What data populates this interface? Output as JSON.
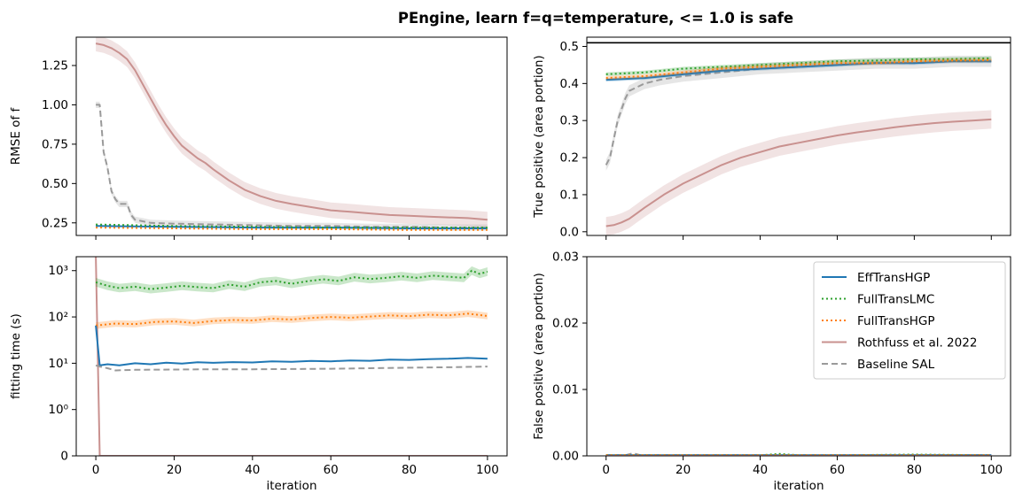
{
  "title": "PEngine, learn f=q=temperature, <= 1.0 is safe",
  "colors": {
    "EffTransHGP": "#1f77b4",
    "FullTransLMC": "#2ca02c",
    "FullTransHGP": "#ff7f0e",
    "Rothfuss": "#c9918f",
    "Baseline": "#9a9a9a"
  },
  "legend": {
    "placement": "upper-right (bottom-right panel)",
    "entries": [
      {
        "label": "EffTransHGP",
        "style": "solid",
        "color_key": "EffTransHGP"
      },
      {
        "label": "FullTransLMC",
        "style": "dotted",
        "color_key": "FullTransLMC"
      },
      {
        "label": "FullTransHGP",
        "style": "dotted",
        "color_key": "FullTransHGP"
      },
      {
        "label": "Rothfuss et al. 2022",
        "style": "solid",
        "color_key": "Rothfuss"
      },
      {
        "label": "Baseline SAL",
        "style": "dashed",
        "color_key": "Baseline"
      }
    ]
  },
  "chart_data": [
    {
      "panel": "top-left",
      "type": "line",
      "xlabel": "",
      "ylabel": "RMSE of f",
      "xlim": [
        -5,
        105
      ],
      "ylim": [
        0.17,
        1.43
      ],
      "yscale": "linear",
      "yticks": [
        "0.25",
        "0.50",
        "0.75",
        "1.00",
        "1.25"
      ],
      "ytick_values": [
        0.25,
        0.5,
        0.75,
        1.0,
        1.25
      ],
      "xtick_values": [
        0,
        20,
        40,
        60,
        80,
        100
      ],
      "show_xticklabels": false,
      "grid": false,
      "series": [
        {
          "name": "Rothfuss et al. 2022",
          "color_key": "Rothfuss",
          "style": "solid",
          "band": 0.05,
          "x": [
            0,
            2,
            4,
            6,
            8,
            10,
            12,
            14,
            16,
            18,
            20,
            22,
            24,
            26,
            28,
            30,
            34,
            38,
            42,
            46,
            50,
            55,
            60,
            65,
            70,
            75,
            80,
            85,
            90,
            95,
            100
          ],
          "y": [
            1.39,
            1.38,
            1.36,
            1.33,
            1.29,
            1.22,
            1.13,
            1.04,
            0.95,
            0.87,
            0.8,
            0.74,
            0.7,
            0.66,
            0.63,
            0.59,
            0.52,
            0.46,
            0.42,
            0.39,
            0.37,
            0.35,
            0.33,
            0.32,
            0.31,
            0.3,
            0.295,
            0.29,
            0.285,
            0.28,
            0.27
          ]
        },
        {
          "name": "Baseline SAL",
          "color_key": "Baseline",
          "style": "dashed",
          "band": 0.02,
          "x": [
            0,
            1,
            2,
            3,
            4,
            5,
            6,
            7,
            8,
            9,
            10,
            12,
            14,
            20,
            30,
            40,
            50,
            60,
            70,
            80,
            90,
            100
          ],
          "y": [
            1.0,
            1.0,
            0.7,
            0.6,
            0.45,
            0.4,
            0.37,
            0.37,
            0.37,
            0.3,
            0.27,
            0.26,
            0.25,
            0.245,
            0.24,
            0.235,
            0.23,
            0.23,
            0.225,
            0.225,
            0.22,
            0.22
          ]
        },
        {
          "name": "EffTransHGP",
          "color_key": "EffTransHGP",
          "style": "solid",
          "band": 0.0,
          "x": [
            0,
            20,
            40,
            60,
            80,
            100
          ],
          "y": [
            0.23,
            0.225,
            0.22,
            0.22,
            0.215,
            0.215
          ]
        },
        {
          "name": "FullTransLMC",
          "color_key": "FullTransLMC",
          "style": "dotted",
          "band": 0.0,
          "x": [
            0,
            20,
            40,
            60,
            80,
            100
          ],
          "y": [
            0.24,
            0.23,
            0.225,
            0.22,
            0.22,
            0.22
          ]
        },
        {
          "name": "FullTransHGP",
          "color_key": "FullTransHGP",
          "style": "dotted",
          "band": 0.0,
          "x": [
            0,
            20,
            40,
            60,
            80,
            100
          ],
          "y": [
            0.22,
            0.215,
            0.21,
            0.21,
            0.205,
            0.205
          ]
        }
      ]
    },
    {
      "panel": "top-right",
      "type": "line",
      "xlabel": "",
      "ylabel": "True positive (area portion)",
      "xlim": [
        -5,
        105
      ],
      "ylim": [
        -0.01,
        0.525
      ],
      "yscale": "linear",
      "yticks": [
        "0.0",
        "0.1",
        "0.2",
        "0.3",
        "0.4",
        "0.5"
      ],
      "ytick_values": [
        0.0,
        0.1,
        0.2,
        0.3,
        0.4,
        0.5
      ],
      "xtick_values": [
        0,
        20,
        40,
        60,
        80,
        100
      ],
      "show_xticklabels": false,
      "grid": false,
      "hline": 0.51,
      "series": [
        {
          "name": "Rothfuss et al. 2022",
          "color_key": "Rothfuss",
          "style": "solid",
          "band": 0.025,
          "x": [
            0,
            2,
            4,
            6,
            8,
            10,
            15,
            20,
            25,
            30,
            35,
            40,
            45,
            50,
            55,
            60,
            65,
            70,
            75,
            80,
            85,
            90,
            95,
            100
          ],
          "y": [
            0.015,
            0.018,
            0.025,
            0.035,
            0.05,
            0.065,
            0.1,
            0.13,
            0.155,
            0.18,
            0.2,
            0.215,
            0.23,
            0.24,
            0.25,
            0.26,
            0.268,
            0.275,
            0.282,
            0.288,
            0.293,
            0.297,
            0.3,
            0.303
          ]
        },
        {
          "name": "Baseline SAL",
          "color_key": "Baseline",
          "style": "dashed",
          "band": 0.015,
          "x": [
            0,
            1,
            2,
            3,
            4,
            5,
            6,
            8,
            10,
            14,
            20,
            30,
            40,
            50,
            60,
            70,
            80,
            90,
            100
          ],
          "y": [
            0.18,
            0.2,
            0.25,
            0.3,
            0.33,
            0.36,
            0.38,
            0.39,
            0.4,
            0.41,
            0.42,
            0.43,
            0.44,
            0.445,
            0.45,
            0.455,
            0.455,
            0.46,
            0.46
          ]
        },
        {
          "name": "EffTransHGP",
          "color_key": "EffTransHGP",
          "style": "solid",
          "band": 0.005,
          "x": [
            0,
            10,
            20,
            30,
            40,
            50,
            60,
            70,
            80,
            90,
            100
          ],
          "y": [
            0.41,
            0.415,
            0.425,
            0.435,
            0.44,
            0.445,
            0.45,
            0.455,
            0.455,
            0.46,
            0.46
          ]
        },
        {
          "name": "FullTransLMC",
          "color_key": "FullTransLMC",
          "style": "dotted",
          "band": 0.005,
          "x": [
            0,
            10,
            20,
            30,
            40,
            50,
            60,
            70,
            80,
            90,
            100
          ],
          "y": [
            0.425,
            0.43,
            0.44,
            0.445,
            0.45,
            0.455,
            0.46,
            0.462,
            0.465,
            0.466,
            0.468
          ]
        },
        {
          "name": "FullTransHGP",
          "color_key": "FullTransHGP",
          "style": "dotted",
          "band": 0.005,
          "x": [
            0,
            10,
            20,
            30,
            40,
            50,
            60,
            70,
            80,
            90,
            100
          ],
          "y": [
            0.415,
            0.42,
            0.43,
            0.44,
            0.445,
            0.45,
            0.455,
            0.455,
            0.46,
            0.462,
            0.463
          ]
        }
      ]
    },
    {
      "panel": "bottom-left",
      "type": "line",
      "xlabel": "iteration",
      "ylabel": "fitting time (s)",
      "xlim": [
        -5,
        105
      ],
      "yscale": "symlog",
      "ylim": [
        0,
        2000
      ],
      "yticks": [
        "0",
        "10⁰",
        "10¹",
        "10²",
        "10³"
      ],
      "ytick_values": [
        0,
        1,
        10,
        100,
        1000
      ],
      "xticks": [
        "0",
        "20",
        "40",
        "60",
        "80",
        "100"
      ],
      "xtick_values": [
        0,
        20,
        40,
        60,
        80,
        100
      ],
      "show_xticklabels": true,
      "grid": false,
      "series": [
        {
          "name": "Rothfuss et al. 2022",
          "color_key": "Rothfuss",
          "style": "solid",
          "band": 0.0,
          "x": [
            0,
            1,
            2,
            100
          ],
          "y": [
            2000,
            0,
            0,
            0
          ]
        },
        {
          "name": "FullTransLMC",
          "color_key": "FullTransLMC",
          "style": "dotted",
          "band": 0.08,
          "x": [
            0,
            3,
            6,
            10,
            14,
            18,
            22,
            26,
            30,
            34,
            38,
            42,
            46,
            50,
            54,
            58,
            62,
            66,
            70,
            74,
            78,
            82,
            86,
            90,
            94,
            96,
            98,
            100
          ],
          "y": [
            560,
            470,
            420,
            450,
            400,
            430,
            470,
            440,
            420,
            500,
            450,
            560,
            600,
            520,
            590,
            650,
            600,
            720,
            660,
            700,
            760,
            700,
            780,
            740,
            700,
            1000,
            850,
            950
          ]
        },
        {
          "name": "FullTransHGP",
          "color_key": "FullTransHGP",
          "style": "dotted",
          "band": 0.06,
          "x": [
            0,
            5,
            10,
            15,
            20,
            25,
            30,
            35,
            40,
            45,
            50,
            55,
            60,
            65,
            70,
            75,
            80,
            85,
            90,
            95,
            100
          ],
          "y": [
            65,
            72,
            70,
            78,
            80,
            74,
            82,
            86,
            84,
            92,
            88,
            95,
            100,
            96,
            102,
            108,
            104,
            112,
            108,
            118,
            105
          ]
        },
        {
          "name": "EffTransHGP",
          "color_key": "EffTransHGP",
          "style": "solid",
          "band": 0.0,
          "x": [
            0,
            1,
            3,
            6,
            10,
            14,
            18,
            22,
            26,
            30,
            35,
            40,
            45,
            50,
            55,
            60,
            65,
            70,
            75,
            80,
            85,
            90,
            95,
            100
          ],
          "y": [
            65,
            9,
            9.5,
            9.0,
            10,
            9.5,
            10.3,
            9.8,
            10.5,
            10.2,
            10.6,
            10.4,
            11,
            10.7,
            11.2,
            11,
            11.5,
            11.3,
            12,
            11.8,
            12.3,
            12.5,
            13,
            12.5
          ]
        },
        {
          "name": "Baseline SAL",
          "color_key": "Baseline",
          "style": "dashed",
          "band": 0.0,
          "x": [
            0,
            1,
            3,
            5,
            10,
            20,
            30,
            40,
            50,
            60,
            70,
            80,
            90,
            100
          ],
          "y": [
            9,
            8.5,
            7.8,
            7.0,
            7.2,
            7.3,
            7.4,
            7.4,
            7.5,
            7.6,
            7.8,
            8.0,
            8.2,
            8.5
          ]
        }
      ]
    },
    {
      "panel": "bottom-right",
      "type": "line",
      "xlabel": "iteration",
      "ylabel": "False positive (area portion)",
      "xlim": [
        -5,
        105
      ],
      "ylim": [
        0,
        0.03
      ],
      "yscale": "linear",
      "yticks": [
        "0.00",
        "0.01",
        "0.02",
        "0.03"
      ],
      "ytick_values": [
        0,
        0.01,
        0.02,
        0.03
      ],
      "xticks": [
        "0",
        "20",
        "40",
        "60",
        "80",
        "100"
      ],
      "xtick_values": [
        0,
        20,
        40,
        60,
        80,
        100
      ],
      "show_xticklabels": true,
      "grid": false,
      "series": [
        {
          "name": "Baseline SAL",
          "color_key": "Baseline",
          "style": "dashed",
          "band": 0.0,
          "x": [
            0,
            5,
            7,
            9,
            20,
            40,
            60,
            80,
            100
          ],
          "y": [
            0.0001,
            0.0001,
            0.0004,
            0.0001,
            0.0001,
            0.0001,
            0.0001,
            0.0001,
            0.0001
          ]
        },
        {
          "name": "EffTransHGP",
          "color_key": "EffTransHGP",
          "style": "solid",
          "band": 0.0,
          "x": [
            0,
            20,
            40,
            60,
            80,
            100
          ],
          "y": [
            0.0001,
            0.0001,
            0.0001,
            0.0001,
            0.0001,
            0.0001
          ]
        },
        {
          "name": "FullTransLMC",
          "color_key": "FullTransLMC",
          "style": "dotted",
          "band": 0.0,
          "x": [
            0,
            20,
            40,
            45,
            50,
            60,
            80,
            100
          ],
          "y": [
            0.0001,
            0.0001,
            0.0001,
            0.0003,
            0.0001,
            0.0001,
            0.0002,
            0.0001
          ]
        },
        {
          "name": "FullTransHGP",
          "color_key": "FullTransHGP",
          "style": "dotted",
          "band": 0.0,
          "x": [
            0,
            20,
            40,
            60,
            80,
            100
          ],
          "y": [
            0.0001,
            0.0001,
            0.0001,
            0.0001,
            0.0001,
            0.0001
          ]
        },
        {
          "name": "Rothfuss et al. 2022",
          "color_key": "Rothfuss",
          "style": "solid",
          "band": 0.0,
          "x": [
            0,
            100
          ],
          "y": [
            0.0,
            0.0
          ]
        }
      ]
    }
  ]
}
